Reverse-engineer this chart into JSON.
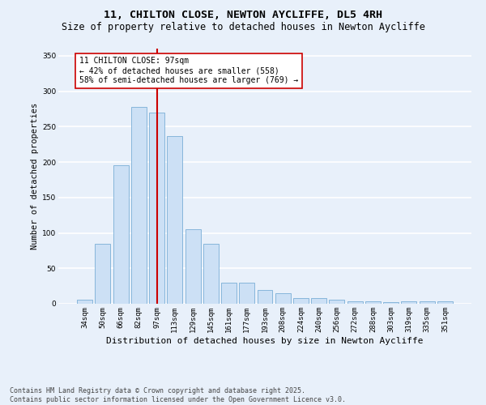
{
  "title_line1": "11, CHILTON CLOSE, NEWTON AYCLIFFE, DL5 4RH",
  "title_line2": "Size of property relative to detached houses in Newton Aycliffe",
  "xlabel": "Distribution of detached houses by size in Newton Aycliffe",
  "ylabel": "Number of detached properties",
  "categories": [
    "34sqm",
    "50sqm",
    "66sqm",
    "82sqm",
    "97sqm",
    "113sqm",
    "129sqm",
    "145sqm",
    "161sqm",
    "177sqm",
    "193sqm",
    "208sqm",
    "224sqm",
    "240sqm",
    "256sqm",
    "272sqm",
    "288sqm",
    "303sqm",
    "319sqm",
    "335sqm",
    "351sqm"
  ],
  "values": [
    6,
    85,
    196,
    278,
    270,
    237,
    105,
    85,
    30,
    30,
    20,
    15,
    8,
    8,
    6,
    3,
    3,
    2,
    3,
    3,
    3
  ],
  "bar_color": "#cce0f5",
  "bar_edge_color": "#7aaed6",
  "vline_index": 4,
  "vline_color": "#cc0000",
  "annotation_line1": "11 CHILTON CLOSE: 97sqm",
  "annotation_line2": "← 42% of detached houses are smaller (558)",
  "annotation_line3": "58% of semi-detached houses are larger (769) →",
  "annotation_box_edgecolor": "#cc0000",
  "annotation_bg": "#ffffff",
  "ylim": [
    0,
    360
  ],
  "yticks": [
    0,
    50,
    100,
    150,
    200,
    250,
    300,
    350
  ],
  "footnote": "Contains HM Land Registry data © Crown copyright and database right 2025.\nContains public sector information licensed under the Open Government Licence v3.0.",
  "background_color": "#e8f0fa",
  "grid_color": "#ffffff",
  "title_fontsize": 9.5,
  "subtitle_fontsize": 8.5,
  "xlabel_fontsize": 8,
  "ylabel_fontsize": 7.5,
  "tick_fontsize": 6.5,
  "annotation_fontsize": 7,
  "footnote_fontsize": 6
}
